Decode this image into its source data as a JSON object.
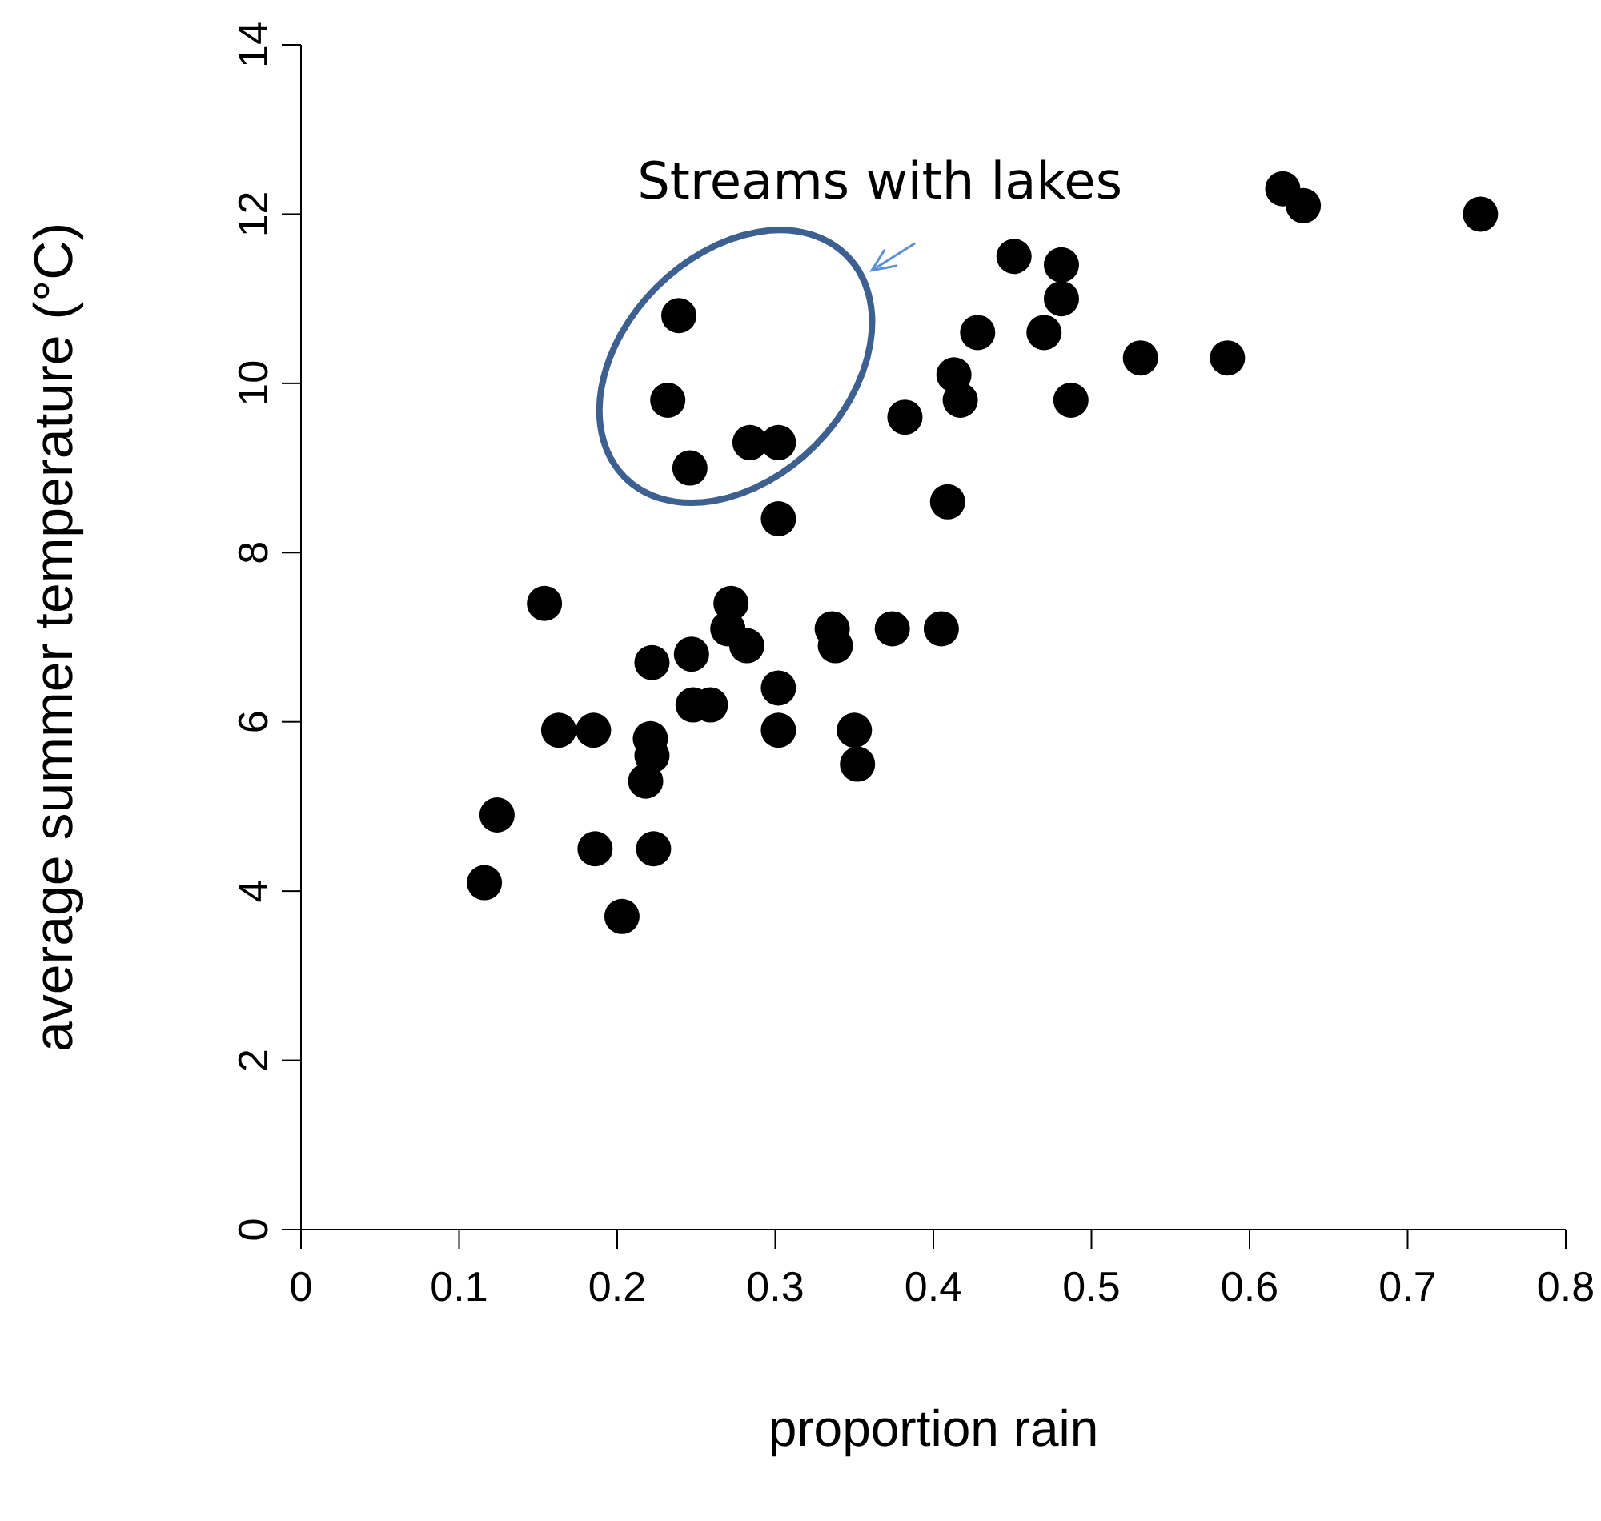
{
  "chart_data": {
    "type": "scatter",
    "xlabel": "proportion rain",
    "ylabel": "average summer temperature (°C)",
    "annotations": [
      "Streams with lakes"
    ],
    "x": [
      0.116,
      0.124,
      0.154,
      0.163,
      0.185,
      0.186,
      0.203,
      0.218,
      0.221,
      0.222,
      0.222,
      0.223,
      0.232,
      0.239,
      0.246,
      0.247,
      0.248,
      0.259,
      0.272,
      0.27,
      0.282,
      0.284,
      0.302,
      0.302,
      0.302,
      0.302,
      0.336,
      0.338,
      0.35,
      0.352,
      0.374,
      0.382,
      0.405,
      0.409,
      0.413,
      0.417,
      0.428,
      0.451,
      0.47,
      0.481,
      0.481,
      0.487,
      0.531,
      0.586,
      0.621,
      0.634,
      0.746
    ],
    "values": [
      4.1,
      4.9,
      7.4,
      5.9,
      5.9,
      4.5,
      3.7,
      5.3,
      5.8,
      5.6,
      6.7,
      4.5,
      9.8,
      10.8,
      9.0,
      6.8,
      6.2,
      6.2,
      7.4,
      7.1,
      6.9,
      9.3,
      9.3,
      6.4,
      5.9,
      8.4,
      7.1,
      6.9,
      5.9,
      5.5,
      7.1,
      9.6,
      7.1,
      8.6,
      10.1,
      9.8,
      10.6,
      11.5,
      10.6,
      11.4,
      11.0,
      9.8,
      10.3,
      10.3,
      12.3,
      12.1,
      12.0
    ],
    "color": "#000000",
    "marker": "circle",
    "xlim": [
      0,
      0.8
    ],
    "xticks": [
      0,
      0.1,
      0.2,
      0.3,
      0.4,
      0.5,
      0.6,
      0.7,
      0.8
    ],
    "ylim": [
      0,
      14
    ],
    "yticks": [
      0,
      2,
      4,
      6,
      8,
      10,
      12,
      14
    ],
    "grid": false,
    "legend": false
  }
}
